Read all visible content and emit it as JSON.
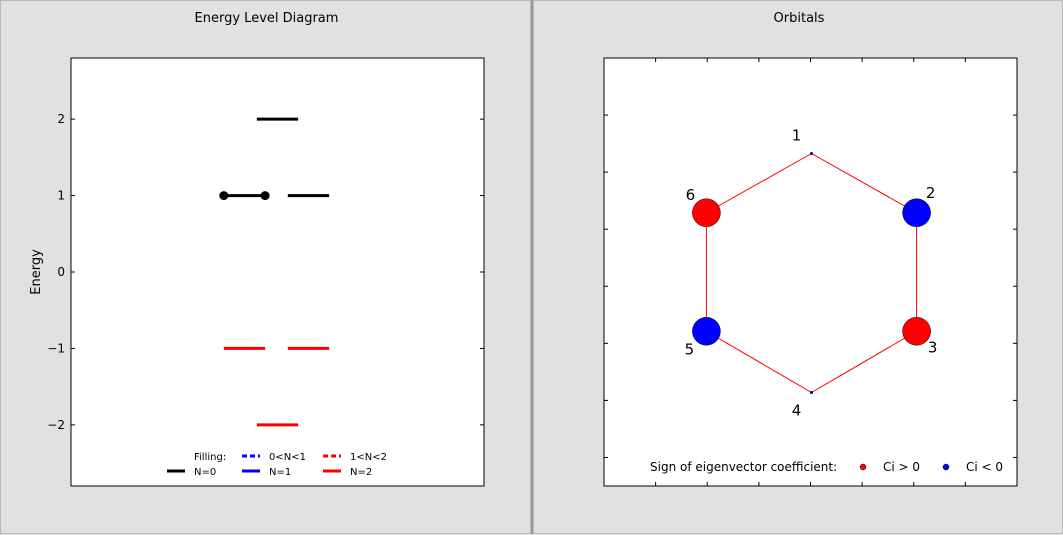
{
  "left": {
    "title": "Energy Level Diagram",
    "ylabel": "Energy",
    "legend": {
      "filling_label": "Filling:",
      "entries": [
        {
          "label": "0<N<1",
          "color": "#0000ff",
          "dashed": true
        },
        {
          "label": "1<N<2",
          "color": "#ff0000",
          "dashed": true
        },
        {
          "label": "N=0",
          "color": "#000000",
          "dashed": false
        },
        {
          "label": "N=1",
          "color": "#0000ff",
          "dashed": false
        },
        {
          "label": "N=2",
          "color": "#ff0000",
          "dashed": false
        }
      ]
    }
  },
  "right": {
    "title": "Orbitals",
    "legend": {
      "label": "Sign of eigenvector coefficient:",
      "positive": {
        "label": "Ci > 0",
        "color": "#ff0000"
      },
      "negative": {
        "label": "Ci < 0",
        "color": "#0000ff"
      }
    }
  },
  "chart_data": [
    {
      "type": "line",
      "title": "Energy Level Diagram",
      "ylabel": "Energy",
      "ylim": [
        -2.8,
        2.8
      ],
      "xlim": [
        0,
        1
      ],
      "yticks": [
        -2,
        -1,
        0,
        1,
        2
      ],
      "ytick_labels": [
        "−2",
        "−1",
        "0",
        "1",
        "2"
      ],
      "levels": [
        {
          "energy": 2,
          "x": [
            0.45,
            0.55
          ],
          "filling": "N=0",
          "color": "#000000"
        },
        {
          "energy": 1,
          "x": [
            0.37,
            0.47
          ],
          "filling": "N=0",
          "color": "#000000",
          "markers": true
        },
        {
          "energy": 1,
          "x": [
            0.525,
            0.625
          ],
          "filling": "N=0",
          "color": "#000000"
        },
        {
          "energy": -1,
          "x": [
            0.37,
            0.47
          ],
          "filling": "N=2",
          "color": "#ff0000"
        },
        {
          "energy": -1,
          "x": [
            0.525,
            0.625
          ],
          "filling": "N=2",
          "color": "#ff0000"
        },
        {
          "energy": -2,
          "x": [
            0.45,
            0.55
          ],
          "filling": "N=2",
          "color": "#ff0000"
        }
      ]
    },
    {
      "type": "scatter",
      "title": "Orbitals",
      "xlim": [
        -1.8,
        1.8
      ],
      "ylim": [
        -1.8,
        1.8
      ],
      "atoms": [
        {
          "label": "1",
          "x": 0.0,
          "y": 1.0,
          "coef": 0.0
        },
        {
          "label": "2",
          "x": 0.87,
          "y": 0.5,
          "coef": -0.35
        },
        {
          "label": "3",
          "x": 0.87,
          "y": -0.5,
          "coef": 0.35
        },
        {
          "label": "4",
          "x": 0.0,
          "y": -1.0,
          "coef": 0.0
        },
        {
          "label": "5",
          "x": -0.87,
          "y": -0.5,
          "coef": -0.35
        },
        {
          "label": "6",
          "x": -0.87,
          "y": 0.5,
          "coef": 0.35
        }
      ],
      "bonds": [
        [
          0,
          1
        ],
        [
          1,
          2
        ],
        [
          2,
          3
        ],
        [
          3,
          4
        ],
        [
          4,
          5
        ],
        [
          5,
          0
        ]
      ],
      "bond_color": "#ff0000"
    }
  ]
}
